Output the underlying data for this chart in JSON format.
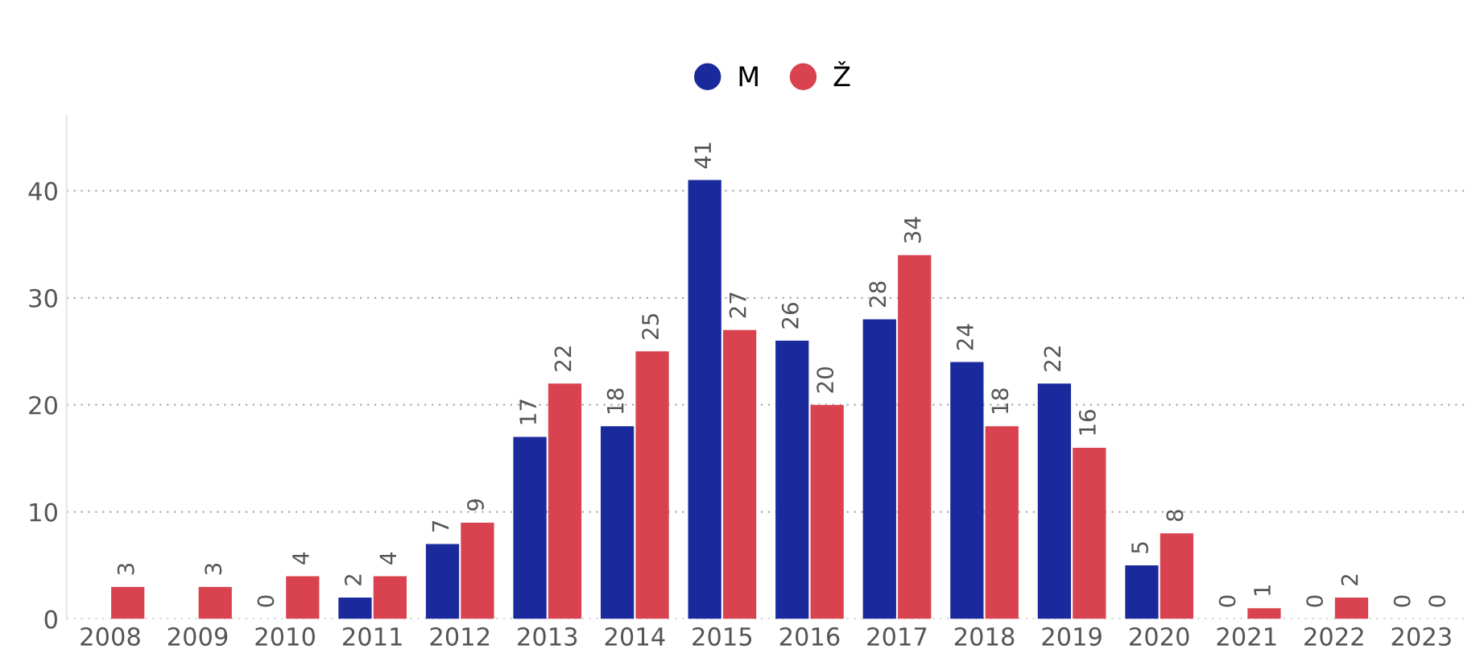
{
  "chart_data": {
    "type": "bar",
    "categories": [
      "2008",
      "2009",
      "2010",
      "2011",
      "2012",
      "2013",
      "2014",
      "2015",
      "2016",
      "2017",
      "2018",
      "2019",
      "2020",
      "2021",
      "2022",
      "2023"
    ],
    "series": [
      {
        "name": "M",
        "color": "#1a2a9c",
        "values": [
          null,
          null,
          0,
          2,
          7,
          17,
          18,
          41,
          26,
          28,
          24,
          22,
          5,
          0,
          0,
          0
        ]
      },
      {
        "name": "Ž",
        "color": "#d9434f",
        "values": [
          3,
          3,
          4,
          4,
          9,
          22,
          25,
          27,
          20,
          34,
          18,
          16,
          8,
          1,
          2,
          0
        ]
      }
    ],
    "ylim": [
      0,
      47
    ],
    "yticks": [
      0,
      10,
      20,
      30,
      40
    ],
    "grid": "y",
    "legend": "top",
    "data_labels": true,
    "marker": "circle"
  }
}
